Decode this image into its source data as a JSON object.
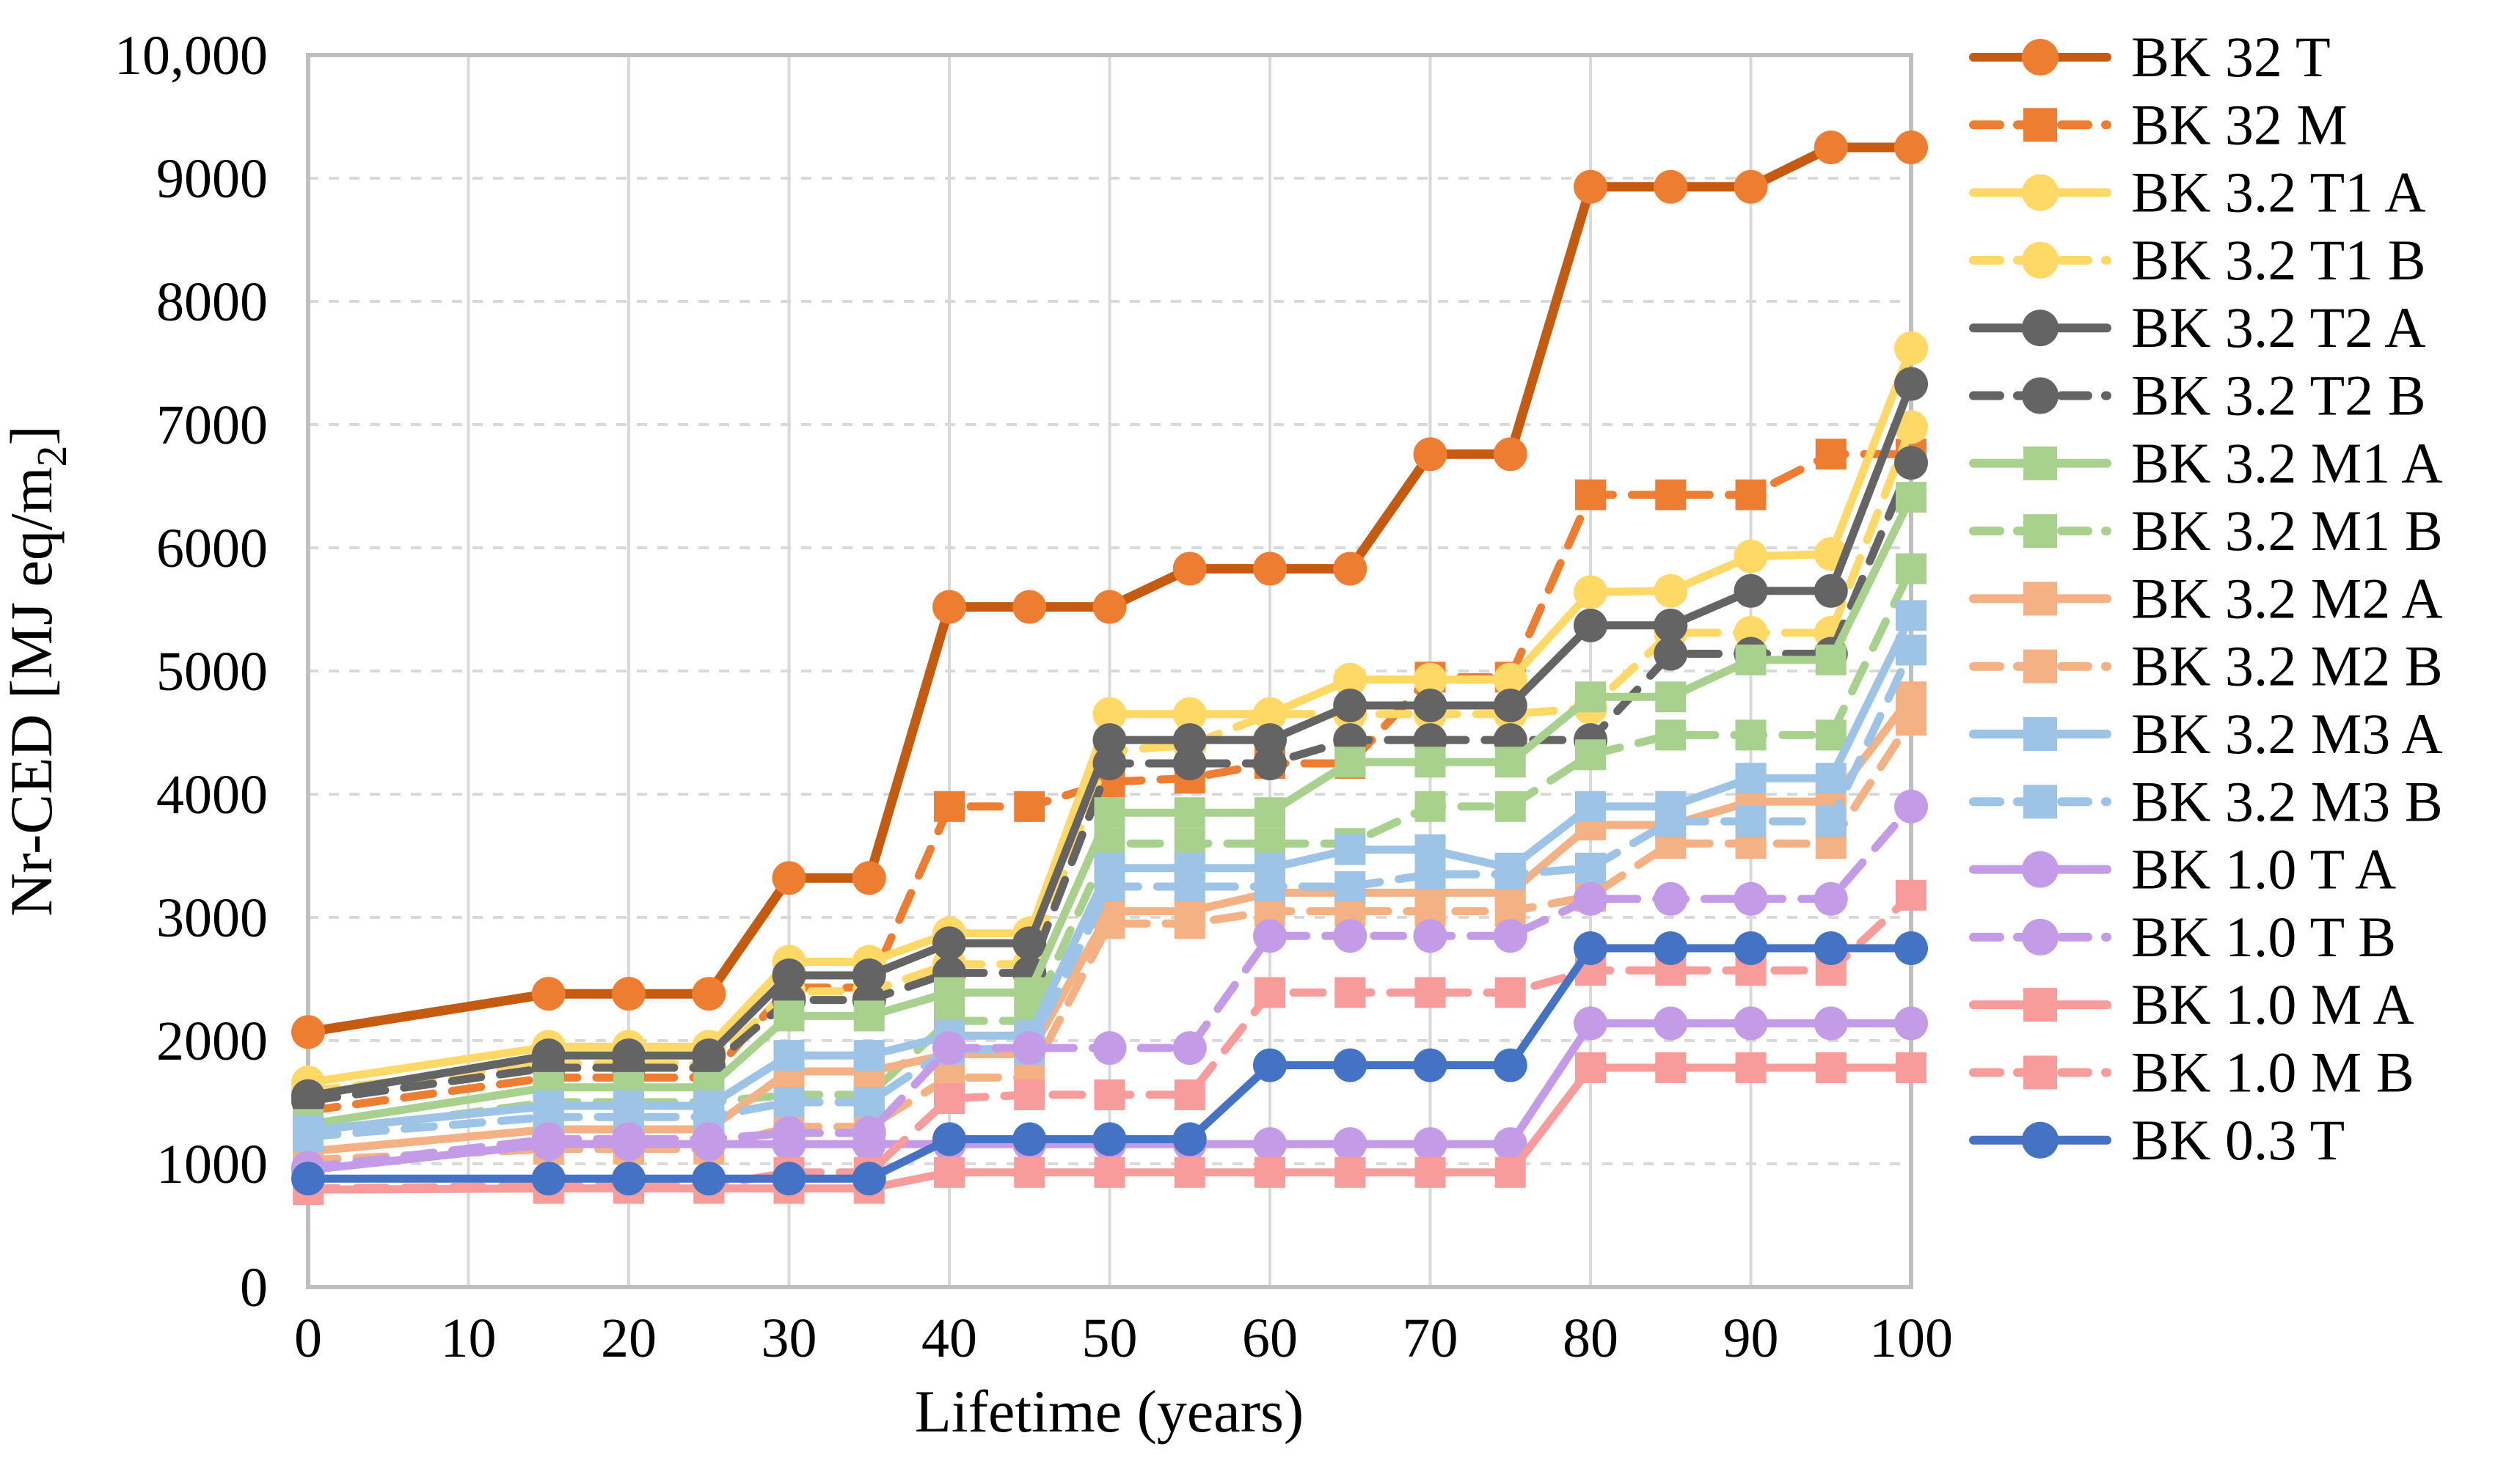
{
  "chart_data": {
    "type": "line",
    "title": "",
    "xlabel": "Lifetime (years)",
    "ylabel": "Nr-CED [MJ eq/m2]",
    "ylabel_parts": {
      "main": "Nr-CED [MJ eq/m",
      "sub": "2",
      "end": "]"
    },
    "xlim": [
      0,
      100
    ],
    "ylim": [
      0,
      10000
    ],
    "grid": "horizontal-dashed-and-vertical-solid",
    "legend_position": "right",
    "x_tick_labels": [
      "0",
      "10",
      "20",
      "30",
      "40",
      "50",
      "60",
      "70",
      "80",
      "90",
      "100"
    ],
    "y_tick_labels": [
      "0",
      "1000",
      "2000",
      "3000",
      "4000",
      "5000",
      "6000",
      "7000",
      "8000",
      "9000",
      "10,000"
    ],
    "x": [
      0,
      15,
      20,
      25,
      30,
      35,
      40,
      45,
      50,
      55,
      60,
      65,
      70,
      75,
      80,
      85,
      90,
      95,
      100
    ],
    "series": [
      {
        "name": "BK 32 T",
        "color": "#C55A11",
        "marker_color": "#ED7D31",
        "line": "solid",
        "marker": "circle",
        "values": [
          2070,
          2380,
          2380,
          2380,
          3320,
          3320,
          5520,
          5520,
          5520,
          5830,
          5830,
          5830,
          6760,
          6760,
          8930,
          8930,
          8930,
          9250,
          9250
        ]
      },
      {
        "name": "BK 32 M",
        "color": "#ED7D31",
        "marker_color": "#ED7D31",
        "line": "dashed",
        "marker": "square",
        "values": [
          1430,
          1700,
          1700,
          1700,
          2430,
          2430,
          3900,
          3900,
          4100,
          4130,
          4250,
          4250,
          4950,
          4950,
          6430,
          6430,
          6430,
          6760,
          6760
        ]
      },
      {
        "name": "BK 3.2 T1 A",
        "color": "#FFD966",
        "marker_color": "#FFD966",
        "line": "solid",
        "marker": "circle",
        "values": [
          1660,
          1950,
          1950,
          1950,
          2640,
          2640,
          2870,
          2870,
          4650,
          4650,
          4650,
          4930,
          4930,
          4930,
          5640,
          5650,
          5930,
          5950,
          7620
        ]
      },
      {
        "name": "BK 3.2 T1 B",
        "color": "#FFD966",
        "marker_color": "#FFD966",
        "line": "dashed",
        "marker": "circle",
        "values": [
          1590,
          1810,
          1810,
          1810,
          2400,
          2400,
          2620,
          2620,
          4350,
          4400,
          4650,
          4650,
          4650,
          4650,
          4700,
          5310,
          5310,
          5310,
          6980
        ]
      },
      {
        "name": "BK 3.2 T2 A",
        "color": "#646464",
        "marker_color": "#646464",
        "line": "solid",
        "marker": "circle",
        "values": [
          1550,
          1880,
          1880,
          1880,
          2530,
          2530,
          2790,
          2790,
          4440,
          4440,
          4440,
          4720,
          4720,
          4720,
          5370,
          5370,
          5650,
          5650,
          7330
        ]
      },
      {
        "name": "BK 3.2 T2 B",
        "color": "#646464",
        "marker_color": "#646464",
        "line": "dashed",
        "marker": "circle",
        "values": [
          1510,
          1780,
          1780,
          1780,
          2330,
          2330,
          2550,
          2550,
          4250,
          4250,
          4250,
          4440,
          4440,
          4440,
          4440,
          5140,
          5140,
          5140,
          6690
        ]
      },
      {
        "name": "BK 3.2 M1 A",
        "color": "#A9D18E",
        "marker_color": "#A9D18E",
        "line": "solid",
        "marker": "square",
        "values": [
          1320,
          1620,
          1620,
          1620,
          2200,
          2200,
          2390,
          2390,
          3850,
          3850,
          3850,
          4260,
          4260,
          4260,
          4790,
          4790,
          5090,
          5090,
          6410
        ]
      },
      {
        "name": "BK 3.2 M1 B",
        "color": "#A9D18E",
        "marker_color": "#A9D18E",
        "line": "dashed",
        "marker": "square",
        "values": [
          1240,
          1500,
          1500,
          1500,
          1560,
          1560,
          2160,
          2160,
          3600,
          3600,
          3600,
          3600,
          3900,
          3900,
          4320,
          4480,
          4480,
          4480,
          5830
        ]
      },
      {
        "name": "BK 3.2 M2 A",
        "color": "#F4B183",
        "marker_color": "#F4B183",
        "line": "solid",
        "marker": "square",
        "values": [
          1100,
          1280,
          1280,
          1280,
          1750,
          1750,
          1890,
          1890,
          3050,
          3050,
          3200,
          3200,
          3200,
          3200,
          3750,
          3750,
          3940,
          3940,
          4790
        ]
      },
      {
        "name": "BK 3.2 M2 B",
        "color": "#F4B183",
        "marker_color": "#F4B183",
        "line": "dashed",
        "marker": "square",
        "values": [
          1030,
          1120,
          1120,
          1120,
          1300,
          1300,
          1700,
          1700,
          2950,
          2950,
          3050,
          3050,
          3050,
          3050,
          3170,
          3600,
          3600,
          3600,
          4600
        ]
      },
      {
        "name": "BK 3.2 M3 A",
        "color": "#9DC3E6",
        "marker_color": "#9DC3E6",
        "line": "solid",
        "marker": "square",
        "values": [
          1270,
          1470,
          1470,
          1470,
          1880,
          1880,
          2040,
          2040,
          3400,
          3400,
          3400,
          3550,
          3550,
          3400,
          3900,
          3900,
          4130,
          4130,
          5450
        ]
      },
      {
        "name": "BK 3.2 M3 B",
        "color": "#9DC3E6",
        "marker_color": "#9DC3E6",
        "line": "dashed",
        "marker": "square",
        "values": [
          1220,
          1380,
          1380,
          1380,
          1500,
          1500,
          1930,
          1930,
          3250,
          3250,
          3250,
          3250,
          3350,
          3350,
          3400,
          3780,
          3780,
          3780,
          5170
        ]
      },
      {
        "name": "BK 1.0 T A",
        "color": "#C49BE6",
        "marker_color": "#C49BE6",
        "line": "solid",
        "marker": "circle",
        "values": [
          950,
          1160,
          1160,
          1160,
          1160,
          1160,
          1160,
          1160,
          1160,
          1160,
          1160,
          1160,
          1160,
          1160,
          2140,
          2140,
          2140,
          2140,
          2140
        ]
      },
      {
        "name": "BK 1.0 T B",
        "color": "#C49BE6",
        "marker_color": "#C49BE6",
        "line": "dashed",
        "marker": "circle",
        "values": [
          970,
          1200,
          1200,
          1200,
          1250,
          1250,
          1940,
          1940,
          1940,
          1940,
          2850,
          2850,
          2850,
          2850,
          3150,
          3150,
          3150,
          3150,
          3900
        ]
      },
      {
        "name": "BK 1.0 M A",
        "color": "#F89B9B",
        "marker_color": "#F89B9B",
        "line": "solid",
        "marker": "square",
        "values": [
          790,
          800,
          800,
          800,
          800,
          800,
          930,
          930,
          930,
          930,
          930,
          930,
          930,
          930,
          1780,
          1780,
          1780,
          1780,
          1780
        ]
      },
      {
        "name": "BK 1.0 M B",
        "color": "#F89B9B",
        "marker_color": "#F89B9B",
        "line": "dashed",
        "marker": "square",
        "values": [
          800,
          820,
          820,
          820,
          930,
          930,
          1530,
          1560,
          1560,
          1560,
          2390,
          2390,
          2390,
          2390,
          2570,
          2570,
          2570,
          2570,
          3180
        ]
      },
      {
        "name": "BK 0.3 T",
        "color": "#4472C4",
        "marker_color": "#4472C4",
        "line": "solid",
        "marker": "circle",
        "values": [
          880,
          880,
          880,
          880,
          880,
          880,
          1200,
          1200,
          1200,
          1200,
          1800,
          1800,
          1800,
          1800,
          2750,
          2750,
          2750,
          2750,
          2750
        ]
      }
    ],
    "style": {
      "grid_color": "#D9D9D9",
      "frame_color": "#BFBFBF",
      "background": "#FFFFFF"
    }
  }
}
